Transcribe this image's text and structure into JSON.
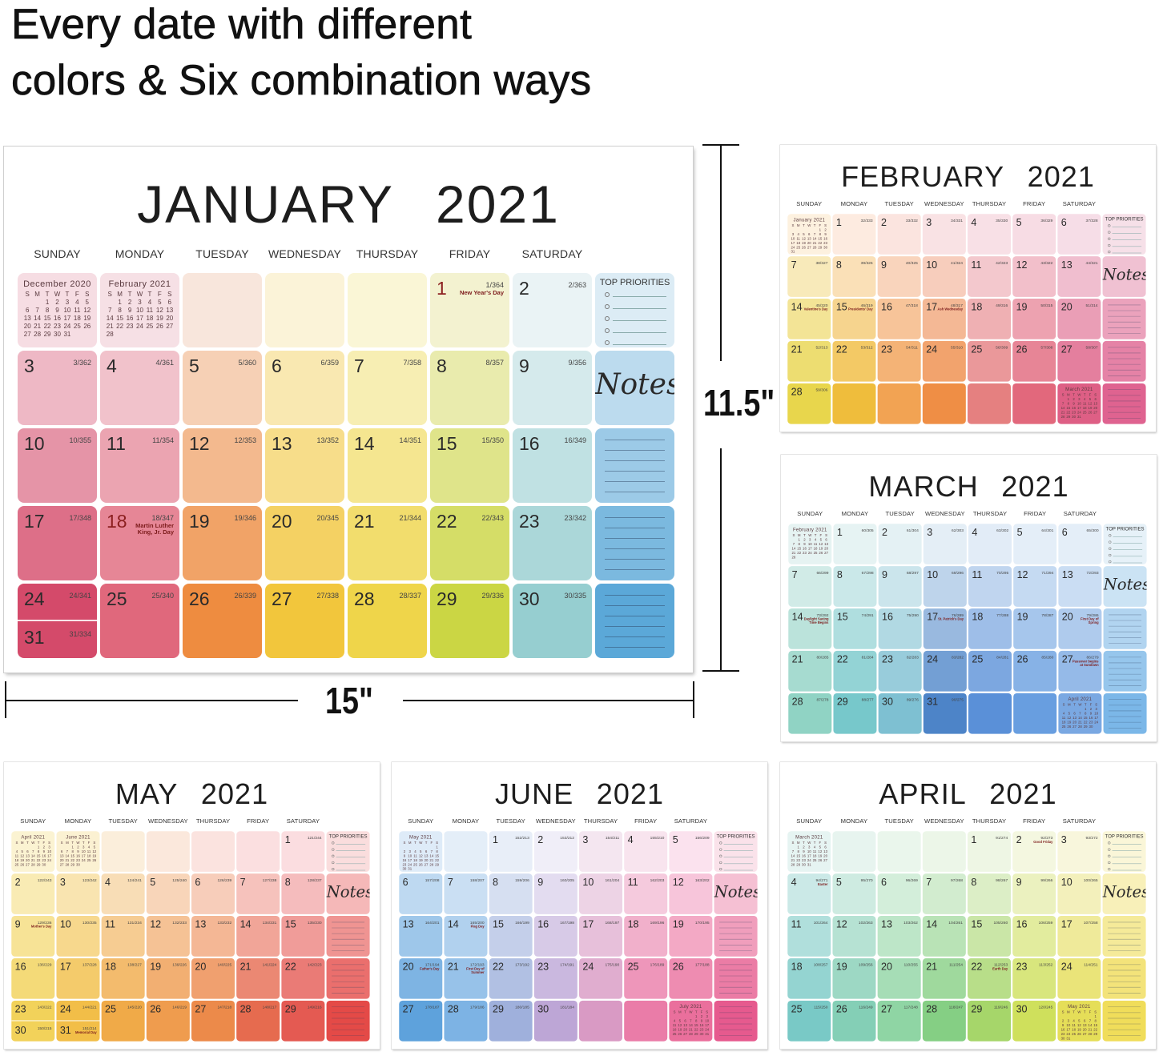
{
  "headline": {
    "line1": "Every date with different",
    "line2": "colors & Six combination ways"
  },
  "dimensions": {
    "height_label": "11.5\"",
    "width_label": "15\""
  },
  "weekdays": [
    "SUNDAY",
    "MONDAY",
    "TUESDAY",
    "WEDNESDAY",
    "THURSDAY",
    "FRIDAY",
    "SATURDAY"
  ],
  "mini_weekdays": [
    "S",
    "M",
    "T",
    "W",
    "T",
    "F",
    "S"
  ],
  "priorities_label": "TOP PRIORITIES",
  "notes_label": "Notes",
  "calendars": [
    {
      "month": "JANUARY",
      "year": "2021",
      "start_weekday": 5,
      "days": 31,
      "holiday_number_color": "#8b1f1f",
      "prev": {
        "title": "December  2020",
        "start_weekday": 2,
        "days": 31
      },
      "next": {
        "title": "February  2021",
        "start_weekday": 1,
        "days": 28
      },
      "top_colors": [
        "#f6dde3",
        "#f6e0e5",
        "#f8e6dc",
        "#fbf3d8",
        "#faf6d6",
        "#f3f2d0",
        "#eaf3f5",
        "#dcecf5"
      ],
      "bottom_colors": [
        "#d44a6a",
        "#e0687c",
        "#ee8c40",
        "#f2c63c",
        "#efd54a",
        "#cbd644",
        "#96ced0",
        "#5ba8d8"
      ],
      "holidays": {
        "1": "New Year's Day",
        "18": "Martin Luther King, Jr. Day"
      },
      "day_of_year": [
        "1/364",
        "2/363",
        "3/362",
        "4/361",
        "5/360",
        "6/359",
        "7/358",
        "8/357",
        "9/356",
        "10/355",
        "11/354",
        "12/353",
        "13/352",
        "14/351",
        "15/350",
        "16/349",
        "17/348",
        "18/347",
        "19/346",
        "20/345",
        "21/344",
        "22/343",
        "23/342",
        "24/341",
        "25/340",
        "26/339",
        "27/338",
        "28/337",
        "29/336",
        "30/335",
        "31/334"
      ]
    },
    {
      "month": "FEBRUARY",
      "year": "2021",
      "start_weekday": 1,
      "days": 28,
      "prev": {
        "title": "January  2021",
        "start_weekday": 5,
        "days": 31
      },
      "next": {
        "title": "March  2021",
        "start_weekday": 1,
        "days": 31
      },
      "top_colors": [
        "#fdf1df",
        "#fdebe0",
        "#fbe4df",
        "#f9e2e4",
        "#f8e0e6",
        "#f7dce4",
        "#f6dde7",
        "#f6e0e8"
      ],
      "bottom_colors": [
        "#e8d64c",
        "#efbd3c",
        "#f2a353",
        "#ef8e45",
        "#e58080",
        "#e2687c",
        "#de5f85",
        "#df6390"
      ],
      "holidays": {
        "14": "Valentine's Day",
        "15": "Presidents' Day",
        "17": "Ash Wednesday"
      },
      "day_of_year": [
        "32/333",
        "33/332",
        "34/331",
        "35/330",
        "36/329",
        "37/328",
        "38/327",
        "39/326",
        "40/325",
        "41/324",
        "42/323",
        "43/322",
        "44/321",
        "45/320",
        "46/319",
        "47/318",
        "48/317",
        "49/316",
        "50/315",
        "51/314",
        "52/313",
        "53/312",
        "54/311",
        "55/310",
        "56/309",
        "57/308",
        "58/307",
        "59/306"
      ]
    },
    {
      "month": "MARCH",
      "year": "2021",
      "start_weekday": 1,
      "days": 31,
      "prev": {
        "title": "February  2021",
        "start_weekday": 1,
        "days": 28
      },
      "next": {
        "title": "April  2021",
        "start_weekday": 4,
        "days": 30
      },
      "top_colors": [
        "#e6f3f2",
        "#e6f3f3",
        "#e4f1f4",
        "#e4eef6",
        "#e2ecf7",
        "#e4eef8",
        "#e4eef8",
        "#e6f1f8"
      ],
      "bottom_colors": [
        "#90d3c4",
        "#77c8cb",
        "#7ec0d2",
        "#4d84c8",
        "#5a90d8",
        "#689ee0",
        "#7aa8e2",
        "#7bb7e8"
      ],
      "holidays": {
        "14": "Daylight Saving Time Begins",
        "17": "St. Patrick's Day",
        "20": "First Day of Spring",
        "27": "Passover begins at Sundown"
      },
      "day_of_year": [
        "60/305",
        "61/304",
        "62/303",
        "63/302",
        "64/301",
        "65/300",
        "66/299",
        "67/298",
        "68/297",
        "69/296",
        "70/295",
        "71/294",
        "72/293",
        "73/292",
        "74/291",
        "75/290",
        "76/289",
        "77/288",
        "78/287",
        "79/286",
        "80/285",
        "81/284",
        "82/283",
        "83/282",
        "84/281",
        "85/280",
        "86/279",
        "87/278",
        "88/277",
        "89/276",
        "90/275"
      ]
    },
    {
      "month": "MAY",
      "year": "2021",
      "start_weekday": 6,
      "days": 31,
      "prev": {
        "title": "April  2021",
        "start_weekday": 4,
        "days": 30
      },
      "next": {
        "title": "June  2021",
        "start_weekday": 2,
        "days": 30
      },
      "top_colors": [
        "#fbf3d2",
        "#fbf1d2",
        "#fbeedb",
        "#fbe8dc",
        "#fbe3df",
        "#fbdfe0",
        "#fbdde0",
        "#fadddd"
      ],
      "bottom_colors": [
        "#f2d25a",
        "#f2be48",
        "#f0aa48",
        "#ef9c4e",
        "#ec8a4a",
        "#e66b4f",
        "#e45a52",
        "#e44a47"
      ],
      "holidays": {
        "9": "Mother's Day",
        "31": "Memorial Day"
      },
      "day_of_year": [
        "121/244",
        "122/243",
        "123/242",
        "124/241",
        "125/240",
        "126/239",
        "127/238",
        "128/237",
        "129/236",
        "130/235",
        "131/234",
        "132/233",
        "133/232",
        "134/231",
        "135/230",
        "136/229",
        "137/228",
        "138/227",
        "139/226",
        "140/225",
        "141/224",
        "142/223",
        "143/222",
        "144/221",
        "145/220",
        "146/219",
        "147/218",
        "148/217",
        "149/216",
        "150/215",
        "151/214"
      ]
    },
    {
      "month": "JUNE",
      "year": "2021",
      "start_weekday": 2,
      "days": 30,
      "prev": {
        "title": "May  2021",
        "start_weekday": 6,
        "days": 31
      },
      "next": {
        "title": "July  2021",
        "start_weekday": 4,
        "days": 31
      },
      "top_colors": [
        "#deebf8",
        "#e4eef8",
        "#e8eef8",
        "#f0eef8",
        "#f4e6f0",
        "#f8e4ee",
        "#fbe2ee",
        "#fae2ea"
      ],
      "bottom_colors": [
        "#5ea2dc",
        "#7db3e4",
        "#9fb0dc",
        "#bda6d6",
        "#d99ac4",
        "#ea7ca8",
        "#ea6f9c",
        "#e65a8e"
      ],
      "holidays": {
        "14": "Flag Day",
        "20": "Father's Day",
        "21": "First Day of Summer"
      },
      "day_of_year": [
        "152/213",
        "153/212",
        "154/211",
        "155/210",
        "156/209",
        "157/208",
        "158/207",
        "159/206",
        "160/205",
        "161/204",
        "162/203",
        "163/202",
        "164/201",
        "165/200",
        "166/199",
        "167/198",
        "168/197",
        "169/196",
        "170/195",
        "171/194",
        "172/193",
        "173/192",
        "174/191",
        "175/190",
        "176/189",
        "177/188",
        "178/187",
        "179/186",
        "180/185",
        "181/184"
      ]
    },
    {
      "month": "APRIL",
      "year": "2021",
      "start_weekday": 4,
      "days": 30,
      "prev": {
        "title": "March  2021",
        "start_weekday": 1,
        "days": 31
      },
      "next": {
        "title": "May  2021",
        "start_weekday": 6,
        "days": 31
      },
      "top_colors": [
        "#e6f4f2",
        "#e7f4ef",
        "#eaf6ec",
        "#ecf6e8",
        "#eef6e4",
        "#f4f7e0",
        "#f8f6dc",
        "#faf6d8"
      ],
      "bottom_colors": [
        "#79c9c6",
        "#84cfb6",
        "#8fd5a4",
        "#85cf84",
        "#a6d66a",
        "#cfe05c",
        "#e5de58",
        "#f0dd5a"
      ],
      "holidays": {
        "2": "Good Friday",
        "4": "Easter",
        "22": "Earth Day"
      },
      "day_of_year": [
        "91/274",
        "92/273",
        "93/272",
        "94/271",
        "95/270",
        "96/269",
        "97/268",
        "98/267",
        "99/266",
        "100/265",
        "101/264",
        "102/263",
        "103/262",
        "104/261",
        "105/260",
        "106/259",
        "107/258",
        "108/257",
        "109/256",
        "110/255",
        "111/254",
        "112/253",
        "113/252",
        "114/251",
        "115/250",
        "116/249",
        "117/248",
        "118/247",
        "119/246",
        "120/245"
      ]
    }
  ]
}
